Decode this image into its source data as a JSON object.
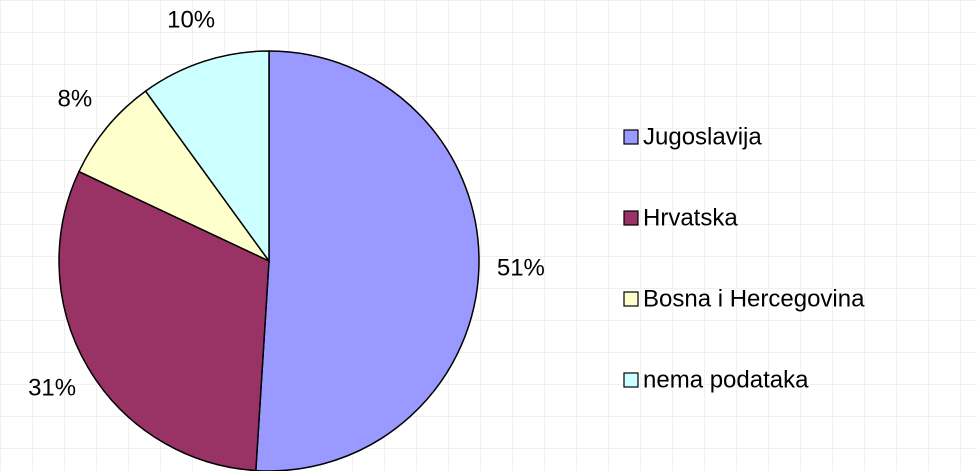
{
  "chart_data": {
    "type": "pie",
    "categories": [
      "Jugoslavija",
      "Hrvatska",
      "Bosna i Hercegovina",
      "nema podataka"
    ],
    "values": [
      51,
      31,
      8,
      10
    ],
    "value_labels": [
      "51%",
      "31%",
      "8%",
      "10%"
    ],
    "colors": [
      "#9999ff",
      "#993366",
      "#ffffcc",
      "#ccffff"
    ],
    "legend": "right"
  }
}
